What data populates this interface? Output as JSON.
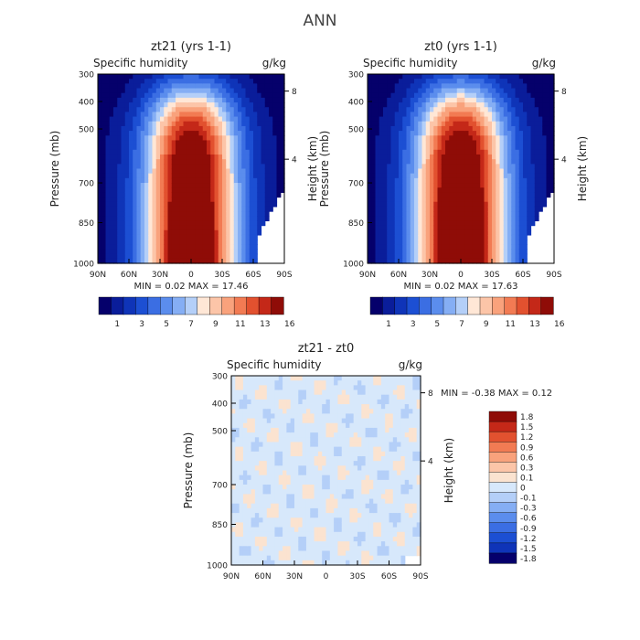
{
  "main_title": "ANN",
  "chart_data": [
    {
      "type": "contour",
      "title": "zt21 (yrs 1-1)",
      "left_label": "Specific humidity",
      "units": "g/kg",
      "ylabel": "Pressure (mb)",
      "ylabel_right": "Height (km)",
      "x_ticks": [
        "90N",
        "60N",
        "30N",
        "0",
        "30S",
        "60S",
        "90S"
      ],
      "y_ticks": [
        "300",
        "400",
        "500",
        "700",
        "850",
        "1000"
      ],
      "height_ticks": [
        "8",
        "4"
      ],
      "min_text": "MIN =   0.02",
      "max_text": "MAX =  17.46",
      "min": 0.02,
      "max": 17.46,
      "colorbar_levels": [
        1,
        3,
        5,
        7,
        9,
        11,
        13,
        16
      ]
    },
    {
      "type": "contour",
      "title": "zt0 (yrs 1-1)",
      "left_label": "Specific humidity",
      "units": "g/kg",
      "ylabel": "Pressure (mb)",
      "ylabel_right": "Height (km)",
      "x_ticks": [
        "90N",
        "60N",
        "30N",
        "0",
        "30S",
        "60S",
        "90S"
      ],
      "y_ticks": [
        "300",
        "400",
        "500",
        "700",
        "850",
        "1000"
      ],
      "height_ticks": [
        "8",
        "4"
      ],
      "min_text": "MIN =   0.02",
      "max_text": "MAX =  17.63",
      "min": 0.02,
      "max": 17.63,
      "colorbar_levels": [
        1,
        3,
        5,
        7,
        9,
        11,
        13,
        16
      ]
    },
    {
      "type": "contour",
      "title": "zt21 - zt0",
      "left_label": "Specific humidity",
      "units": "g/kg",
      "ylabel": "Pressure (mb)",
      "ylabel_right": "Height (km)",
      "x_ticks": [
        "90N",
        "60N",
        "30N",
        "0",
        "30S",
        "60S",
        "90S"
      ],
      "y_ticks": [
        "300",
        "400",
        "500",
        "700",
        "850",
        "1000"
      ],
      "height_ticks": [
        "8",
        "4"
      ],
      "min_text": "MIN =  -0.38",
      "max_text": "MAX =   0.12",
      "min": -0.38,
      "max": 0.12,
      "colorbar_levels": [
        "1.8",
        "1.5",
        "1.2",
        "0.9",
        "0.6",
        "0.3",
        "0.1",
        "0",
        "-0.1",
        "-0.3",
        "-0.6",
        "-0.9",
        "-1.2",
        "-1.5",
        "-1.8"
      ]
    }
  ],
  "colors": {
    "seq": [
      "#05006b",
      "#0a1d9a",
      "#0f34b8",
      "#1c4fd3",
      "#3b6ee3",
      "#5b8ded",
      "#85aef4",
      "#b4cff8",
      "#ffe7d6",
      "#fcc5a8",
      "#f9a27c",
      "#f27b53",
      "#e2512f",
      "#c42818",
      "#8f0c07"
    ],
    "diff": [
      "#8f0c07",
      "#c42818",
      "#e2512f",
      "#f27b53",
      "#f9a27c",
      "#fcc5a8",
      "#fbe3d0",
      "#d7e8fb",
      "#b4cff8",
      "#85aef4",
      "#5b8ded",
      "#3b6ee3",
      "#1c4fd3",
      "#0f34b8",
      "#05006b"
    ]
  }
}
